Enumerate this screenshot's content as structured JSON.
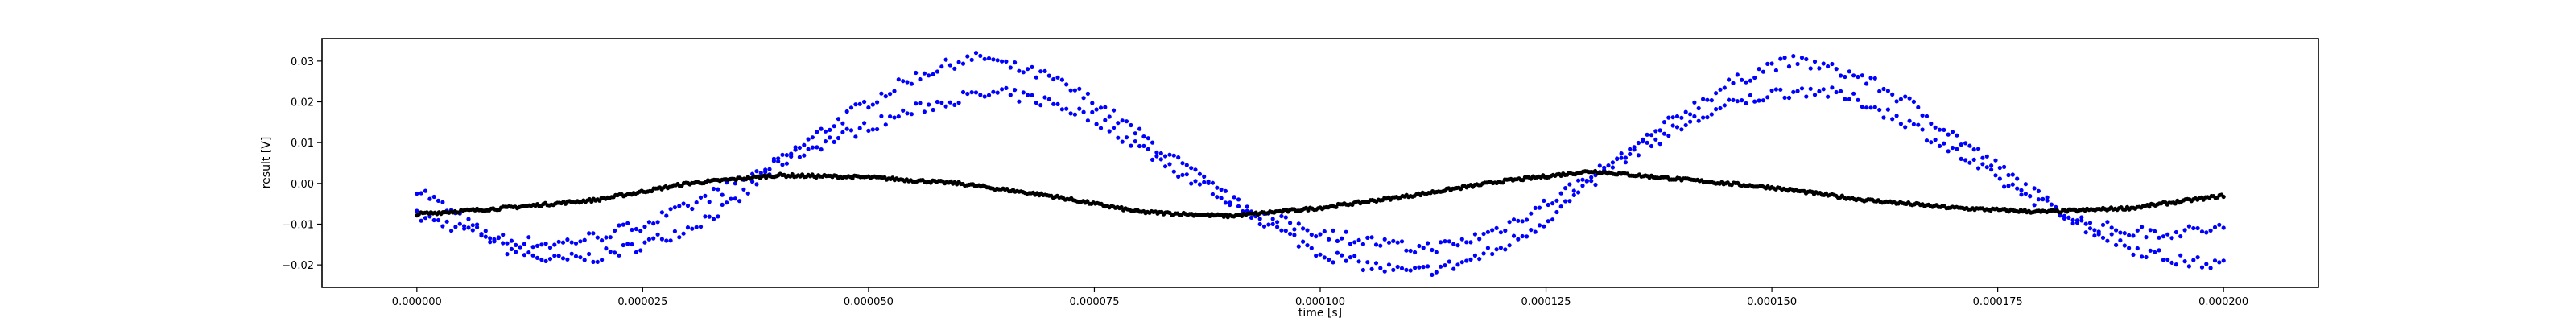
{
  "chart_data": {
    "type": "scatter",
    "title": "",
    "xlabel": "time [s]",
    "ylabel": "result [V]",
    "xlim": [
      -1.05e-05,
      0.0002105
    ],
    "ylim": [
      -0.0255,
      0.0355
    ],
    "grid": false,
    "legend": "none",
    "x_ticks": [
      0.0,
      2.5e-05,
      5e-05,
      7.5e-05,
      0.0001,
      0.000125,
      0.00015,
      0.000175,
      0.0002
    ],
    "x_tick_labels": [
      "0.000000",
      "0.000025",
      "0.000050",
      "0.000075",
      "0.000100",
      "0.000125",
      "0.000150",
      "0.000175",
      "0.000200"
    ],
    "y_ticks": [
      -0.02,
      -0.01,
      0.0,
      0.01,
      0.02,
      0.03
    ],
    "y_tick_labels": [
      "−0.02",
      "−0.01",
      "0.00",
      "0.01",
      "0.02",
      "0.03"
    ],
    "series": [
      {
        "color": "#0000ff",
        "marker": "dot",
        "points": [
          [
            0.0,
            -0.001
          ],
          [
            5e-06,
            -0.009
          ],
          [
            1e-05,
            -0.016
          ],
          [
            1.5e-05,
            -0.019
          ],
          [
            2e-05,
            -0.018
          ],
          [
            2.5e-05,
            -0.015
          ],
          [
            3e-05,
            -0.011
          ],
          [
            3.5e-05,
            -0.005
          ],
          [
            4e-05,
            0.005
          ],
          [
            4.5e-05,
            0.013
          ],
          [
            5e-05,
            0.02
          ],
          [
            5.5e-05,
            0.026
          ],
          [
            6e-05,
            0.03
          ],
          [
            6.3e-05,
            0.031
          ],
          [
            6.5e-05,
            0.029
          ],
          [
            7e-05,
            0.026
          ],
          [
            7.5e-05,
            0.02
          ],
          [
            8e-05,
            0.012
          ],
          [
            8.5e-05,
            0.004
          ],
          [
            9e-05,
            -0.004
          ],
          [
            9.5e-05,
            -0.011
          ],
          [
            0.0001,
            -0.017
          ],
          [
            0.000105,
            -0.02
          ],
          [
            0.00011,
            -0.022
          ],
          [
            0.000115,
            -0.02
          ],
          [
            0.00012,
            -0.016
          ],
          [
            0.000125,
            -0.009
          ],
          [
            0.00013,
            0.0
          ],
          [
            0.000135,
            0.009
          ],
          [
            0.00014,
            0.017
          ],
          [
            0.000145,
            0.024
          ],
          [
            0.00015,
            0.029
          ],
          [
            0.000153,
            0.03
          ],
          [
            0.000155,
            0.029
          ],
          [
            0.00016,
            0.026
          ],
          [
            0.000165,
            0.02
          ],
          [
            0.00017,
            0.012
          ],
          [
            0.000175,
            0.004
          ],
          [
            0.00018,
            -0.004
          ],
          [
            0.000185,
            -0.011
          ],
          [
            0.00019,
            -0.016
          ],
          [
            0.000195,
            -0.019
          ],
          [
            0.0002,
            -0.02
          ]
        ],
        "points_lower_branch": [
          [
            0.0,
            -0.008
          ],
          [
            5e-06,
            -0.011
          ],
          [
            1e-05,
            -0.014
          ],
          [
            1.5e-05,
            -0.015
          ],
          [
            2e-05,
            -0.013
          ],
          [
            2.5e-05,
            -0.01
          ],
          [
            3e-05,
            -0.006
          ],
          [
            3.5e-05,
            0.0
          ],
          [
            4e-05,
            0.005
          ],
          [
            4.5e-05,
            0.01
          ],
          [
            5e-05,
            0.014
          ],
          [
            5.5e-05,
            0.018
          ],
          [
            6e-05,
            0.021
          ],
          [
            6.5e-05,
            0.022
          ],
          [
            7e-05,
            0.02
          ],
          [
            7.5e-05,
            0.016
          ],
          [
            8e-05,
            0.009
          ],
          [
            8.5e-05,
            0.002
          ],
          [
            9e-05,
            -0.004
          ],
          [
            9.5e-05,
            -0.009
          ],
          [
            0.0001,
            -0.012
          ],
          [
            0.000105,
            -0.014
          ],
          [
            0.00011,
            -0.016
          ],
          [
            0.000115,
            -0.015
          ],
          [
            0.00012,
            -0.011
          ],
          [
            0.000125,
            -0.005
          ],
          [
            0.00013,
            0.002
          ],
          [
            0.000135,
            0.008
          ],
          [
            0.00014,
            0.014
          ],
          [
            0.000145,
            0.019
          ],
          [
            0.00015,
            0.022
          ],
          [
            0.000155,
            0.023
          ],
          [
            0.00016,
            0.02
          ],
          [
            0.000165,
            0.015
          ],
          [
            0.00017,
            0.008
          ],
          [
            0.000175,
            0.001
          ],
          [
            0.00018,
            -0.005
          ],
          [
            0.000185,
            -0.01
          ],
          [
            0.00019,
            -0.012
          ],
          [
            0.000195,
            -0.012
          ],
          [
            0.0002,
            -0.011
          ]
        ]
      },
      {
        "color": "#000000",
        "marker": "dot",
        "points": [
          [
            0.0,
            -0.0075
          ],
          [
            1e-05,
            -0.006
          ],
          [
            2e-05,
            -0.004
          ],
          [
            3e-05,
            0.0
          ],
          [
            4e-05,
            0.002
          ],
          [
            5e-05,
            0.0015
          ],
          [
            6e-05,
            0.0
          ],
          [
            7e-05,
            -0.003
          ],
          [
            8e-05,
            -0.007
          ],
          [
            9e-05,
            -0.008
          ],
          [
            0.0001,
            -0.006
          ],
          [
            0.00011,
            -0.003
          ],
          [
            0.00012,
            0.0005
          ],
          [
            0.00013,
            0.003
          ],
          [
            0.00014,
            0.001
          ],
          [
            0.00015,
            -0.001
          ],
          [
            0.00016,
            -0.004
          ],
          [
            0.00017,
            -0.006
          ],
          [
            0.00018,
            -0.007
          ],
          [
            0.00019,
            -0.006
          ],
          [
            0.0002,
            -0.003
          ]
        ]
      }
    ]
  }
}
